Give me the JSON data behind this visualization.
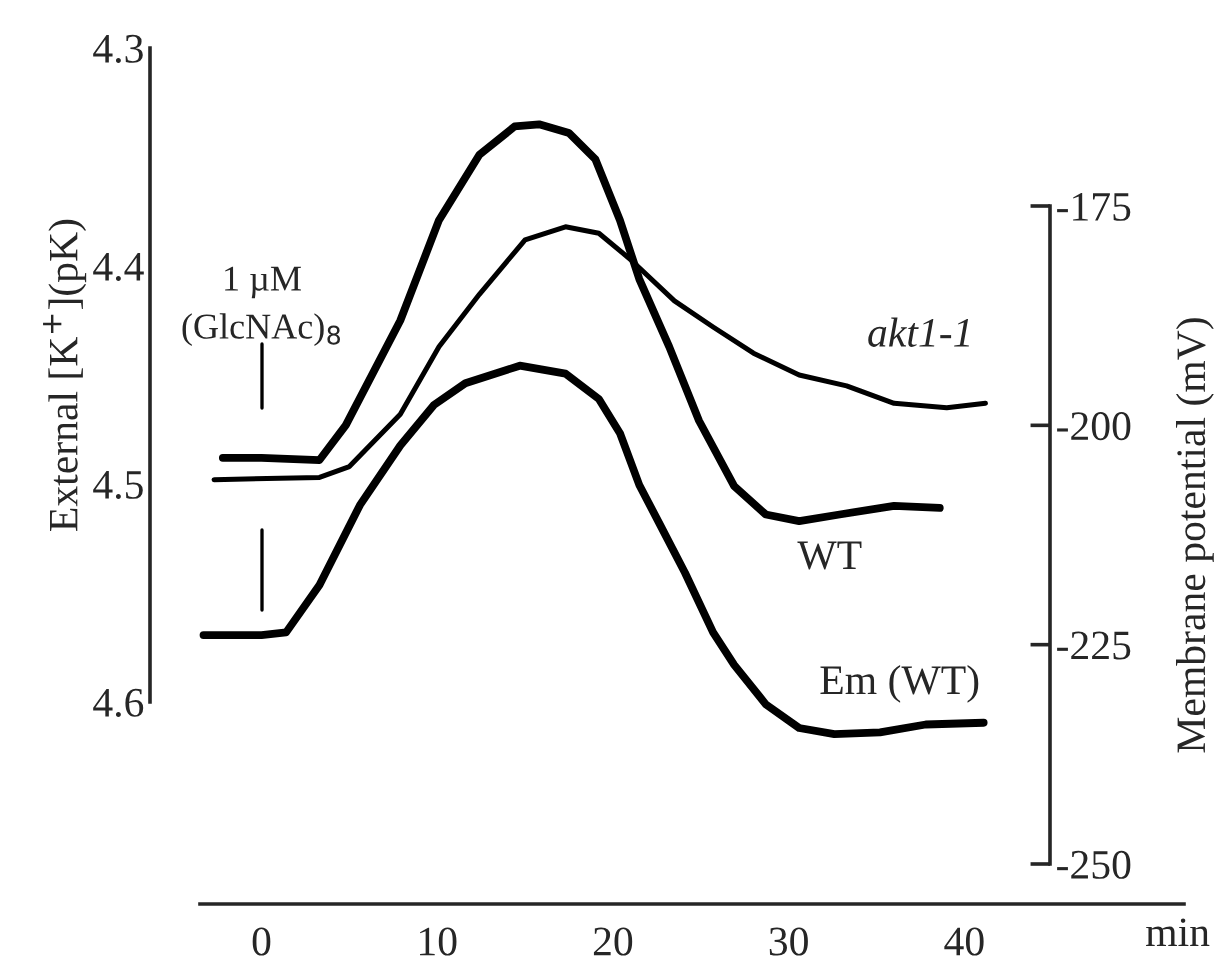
{
  "chart_data": {
    "type": "line",
    "xlabel": "min",
    "ylabel": "External [K$^{+}$](pK)",
    "y2label": "Membrane potential (mV)",
    "xlim": [
      -3.5,
      52.5
    ],
    "xticks": [
      0,
      10,
      20,
      30,
      40
    ],
    "ylim": [
      4.6,
      4.3
    ],
    "yticks": [
      4.3,
      4.4,
      4.5,
      4.6
    ],
    "y2lim": [
      -250,
      -175
    ],
    "y2ticks": [
      -175,
      -200,
      -225,
      -250
    ],
    "grid": false,
    "legend": false,
    "marker": "none",
    "line_style": "solid",
    "annotations": [
      "1 µM\n(GlcNAc)$_{8}$"
    ],
    "series": [
      {
        "name": "akt1-1",
        "color": "#000000",
        "x": [
          -2.7,
          3.3,
          5.0,
          7.9,
          10.1,
          12.4,
          15.0,
          17.3,
          19.2,
          21.0,
          23.5,
          25.7,
          28.0,
          30.6,
          33.3,
          36.0,
          39.0,
          41.2
        ],
        "values": [
          4.498,
          4.497,
          4.492,
          4.468,
          4.437,
          4.413,
          4.388,
          4.382,
          4.385,
          4.397,
          4.416,
          4.428,
          4.44,
          4.45,
          4.455,
          4.463,
          4.465,
          4.463
        ]
      },
      {
        "name": "WT",
        "color": "#000000",
        "x": [
          -2.2,
          0,
          3.3,
          4.8,
          7.9,
          10.1,
          12.4,
          14.4,
          15.8,
          17.5,
          19.0,
          20.4,
          21.5,
          23.2,
          24.9,
          26.9,
          28.7,
          30.6,
          32.9,
          36.0,
          38.6
        ],
        "values": [
          4.488,
          4.488,
          4.489,
          4.473,
          4.425,
          4.379,
          4.349,
          4.336,
          4.335,
          4.339,
          4.351,
          4.379,
          4.406,
          4.437,
          4.471,
          4.501,
          4.514,
          4.517,
          4.514,
          4.51,
          4.511
        ]
      },
      {
        "name": "Em (WT)",
        "color": "#000000",
        "axis": "y2",
        "x": [
          -3.3,
          0,
          1.4,
          3.3,
          5.6,
          7.9,
          9.8,
          11.6,
          14.7,
          17.3,
          19.2,
          20.4,
          21.5,
          22.7,
          24.1,
          25.7,
          26.9,
          28.7,
          30.6,
          32.6,
          35.2,
          37.8,
          41.1
        ],
        "values": [
          -223.9,
          -223.9,
          -223.6,
          -218.2,
          -209.1,
          -202.3,
          -197.7,
          -195.2,
          -193.2,
          -194.1,
          -197.0,
          -200.9,
          -206.8,
          -211.4,
          -216.8,
          -223.6,
          -227.3,
          -231.8,
          -234.5,
          -235.2,
          -235.0,
          -234.1,
          -233.9
        ]
      }
    ]
  }
}
